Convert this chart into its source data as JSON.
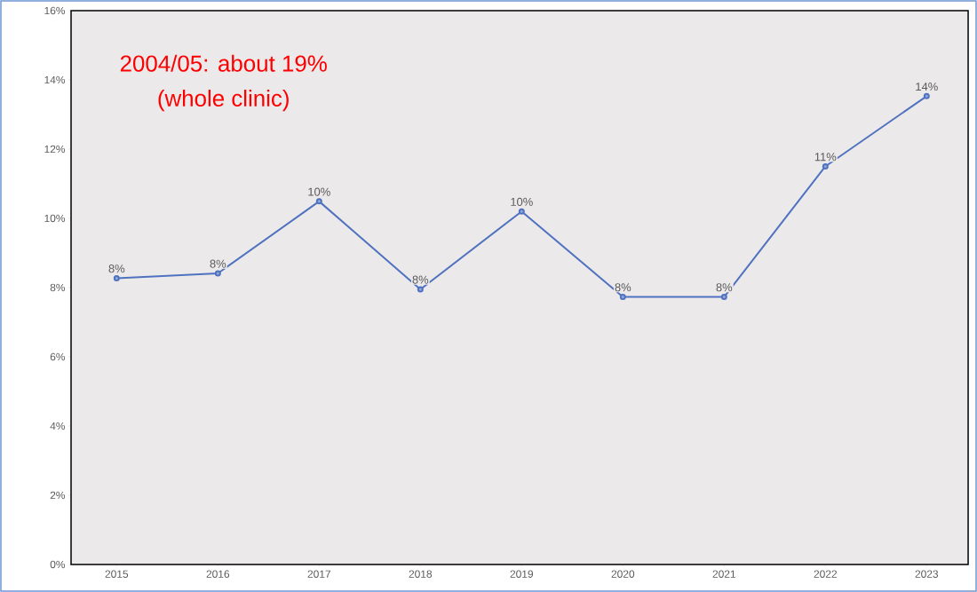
{
  "chart_data": {
    "type": "line",
    "categories": [
      "2015",
      "2016",
      "2017",
      "2018",
      "2019",
      "2020",
      "2021",
      "2022",
      "2023"
    ],
    "series": [
      {
        "color": "#4f72c0",
        "values": [
          8.27,
          8.41,
          10.49,
          7.95,
          10.2,
          7.73,
          7.73,
          11.5,
          13.53
        ],
        "value_labels": [
          "8%",
          "8%",
          "10%",
          "8%",
          "10%",
          "8%",
          "8%",
          "11%",
          "14%"
        ]
      }
    ],
    "ylim": [
      0,
      16
    ],
    "yticks": [
      {
        "value": 0,
        "label": "0%"
      },
      {
        "value": 2,
        "label": "2%"
      },
      {
        "value": 4,
        "label": "4%"
      },
      {
        "value": 6,
        "label": "6%"
      },
      {
        "value": 8,
        "label": "8%"
      },
      {
        "value": 10,
        "label": "10%"
      },
      {
        "value": 12,
        "label": "12%"
      },
      {
        "value": 14,
        "label": "14%"
      },
      {
        "value": 16,
        "label": "16%"
      }
    ],
    "annotations": [
      "2004/05: about 19%",
      "(whole clinic)"
    ],
    "marker": "circle",
    "line_style": "solid",
    "grid": false
  }
}
